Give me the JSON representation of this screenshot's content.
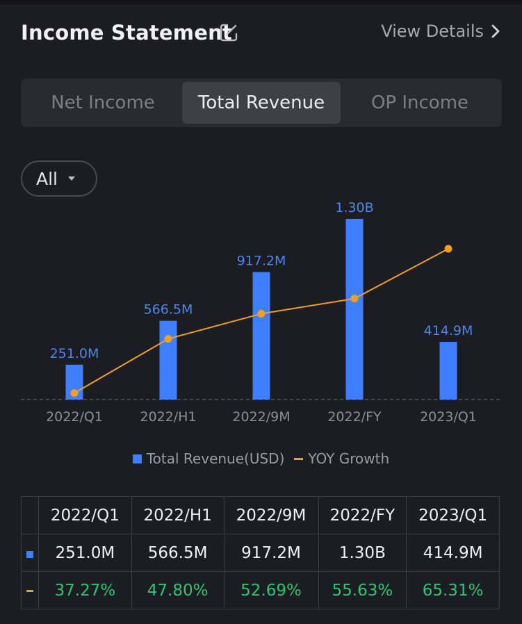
{
  "header": {
    "title": "Income Statement",
    "view_details": "View Details"
  },
  "tabs": [
    {
      "label": "Net Income",
      "active": false
    },
    {
      "label": "Total Revenue",
      "active": true
    },
    {
      "label": "OP Income",
      "active": false
    }
  ],
  "filter": {
    "label": "All"
  },
  "legend": {
    "bar": "Total Revenue(USD)",
    "line": "YOY Growth"
  },
  "colors": {
    "bar": "#3d7fff",
    "line": "#f2a11f",
    "positive": "#31c474"
  },
  "chart_data": {
    "type": "bar",
    "categories": [
      "2022/Q1",
      "2022/H1",
      "2022/9M",
      "2022/FY",
      "2023/Q1"
    ],
    "series": [
      {
        "name": "Total Revenue(USD)",
        "type": "bar",
        "values": [
          251.0,
          566.5,
          917.2,
          1300.0,
          414.9
        ],
        "labels": [
          "251.0M",
          "566.5M",
          "917.2M",
          "1.30B",
          "414.9M"
        ]
      },
      {
        "name": "YOY Growth",
        "type": "line",
        "values": [
          37.27,
          47.8,
          52.69,
          55.63,
          65.31
        ]
      }
    ],
    "grid": false,
    "legend_position": "bottom"
  },
  "table": {
    "headers": [
      "2022/Q1",
      "2022/H1",
      "2022/9M",
      "2022/FY",
      "2023/Q1"
    ],
    "revenue": [
      "251.0M",
      "566.5M",
      "917.2M",
      "1.30B",
      "414.9M"
    ],
    "growth": [
      "37.27%",
      "47.80%",
      "52.69%",
      "55.63%",
      "65.31%"
    ]
  }
}
